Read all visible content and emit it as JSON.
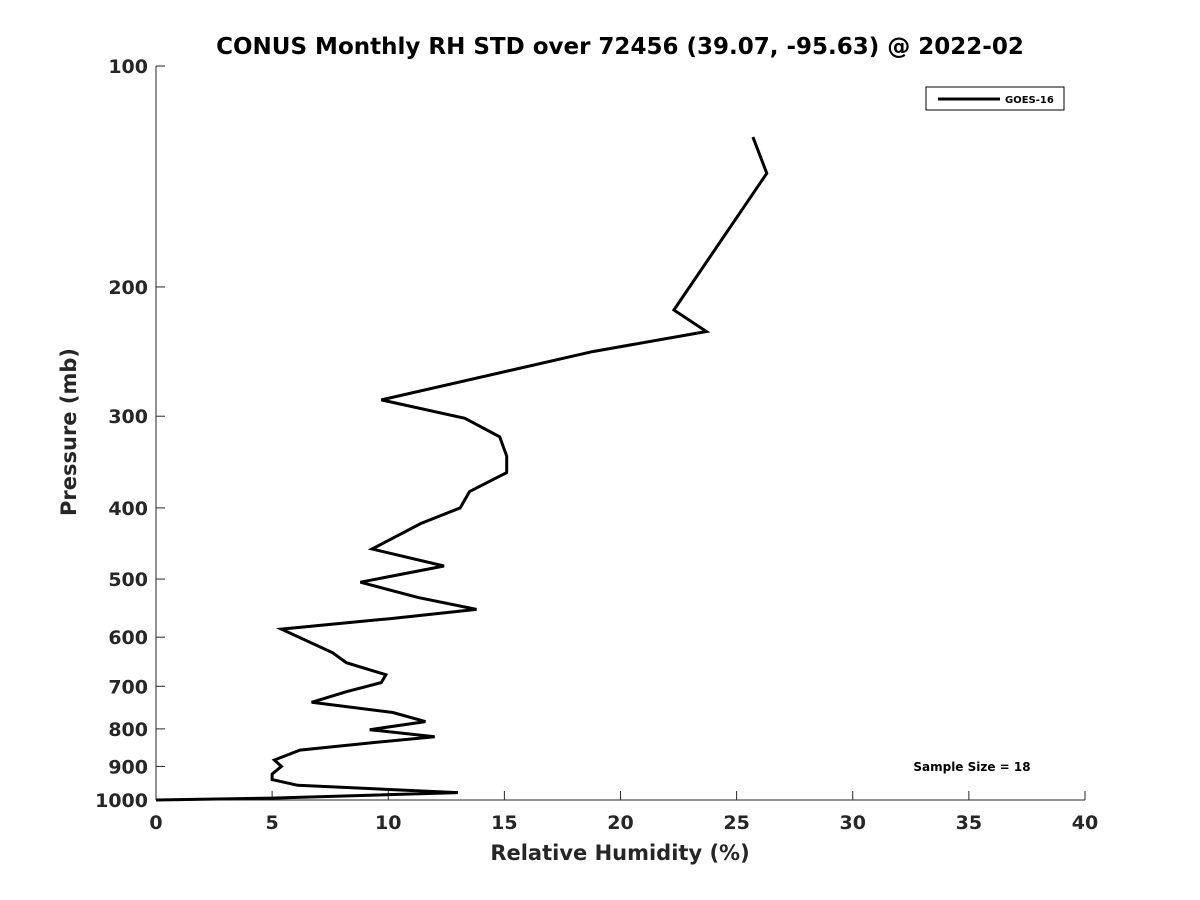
{
  "chart_data": {
    "type": "line",
    "title": "CONUS Monthly RH STD over 72456 (39.07, -95.63) @ 2022-02",
    "xlabel": "Relative Humidity (%)",
    "ylabel": "Pressure (mb)",
    "xlim": [
      0,
      40
    ],
    "ylim": [
      100,
      1000
    ],
    "y_scale": "log",
    "y_reversed": true,
    "x_ticks": [
      0,
      5,
      10,
      15,
      20,
      25,
      30,
      35,
      40
    ],
    "x_tick_labels": [
      "0",
      "5",
      "10",
      "15",
      "20",
      "25",
      "30",
      "35",
      "40"
    ],
    "y_ticks": [
      100,
      200,
      300,
      400,
      500,
      600,
      700,
      800,
      900,
      1000
    ],
    "y_tick_labels": [
      "100",
      "200",
      "300",
      "400",
      "500",
      "600",
      "700",
      "800",
      "900",
      "1000"
    ],
    "grid": false,
    "legend_position": "top-right",
    "series": [
      {
        "name": "GOES-16",
        "color": "#000000",
        "x": [
          25.7,
          26.3,
          22.3,
          23.7,
          18.8,
          9.7,
          13.3,
          14.8,
          15.1,
          15.1,
          13.5,
          13.1,
          11.4,
          9.3,
          12.4,
          8.8,
          11.3,
          13.8,
          10.1,
          5.4,
          7.6,
          8.2,
          9.9,
          9.7,
          8.2,
          6.7,
          10.2,
          11.6,
          9.2,
          12.0,
          9.4,
          6.2,
          5.1,
          5.4,
          5.0,
          5.0,
          6.1,
          13.0,
          5.0,
          0.0
        ],
        "y": [
          125,
          140,
          215,
          230,
          245,
          285,
          302,
          320,
          340,
          358,
          380,
          400,
          420,
          455,
          480,
          505,
          530,
          550,
          566,
          585,
          630,
          650,
          675,
          692,
          712,
          736,
          760,
          782,
          802,
          820,
          835,
          855,
          882,
          900,
          922,
          938,
          955,
          977,
          994,
          1000
        ]
      }
    ],
    "annotations": [
      "Sample Size = 18"
    ]
  }
}
